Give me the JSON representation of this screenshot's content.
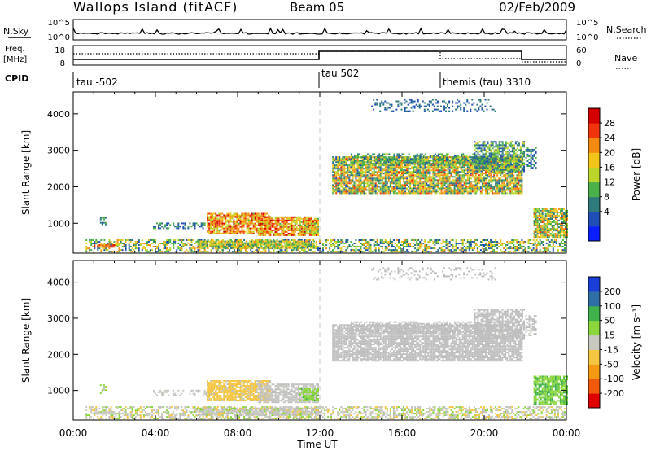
{
  "header": {
    "title": "Wallops Island (fitACF)",
    "beam": "Beam 05",
    "date": "02/Feb/2009"
  },
  "top_panels": {
    "nsky_label": "N.Sky",
    "nsearch_label": "N.Search",
    "noise_ticks": [
      "10^5",
      "10^0"
    ],
    "freq_label_top": "Freq.",
    "freq_label_bottom": "[MHz]",
    "freq_ticks": [
      "18",
      "8"
    ],
    "nave_label": "Nave",
    "nave_ticks": [
      "60",
      "0"
    ],
    "cpid_label": "CPID",
    "cpid_entries": [
      {
        "label": "tau -502",
        "start_hour": 0
      },
      {
        "label": "tau 502",
        "start_hour": 12
      },
      {
        "label": "themis (tau) 3310",
        "start_hour": 18
      }
    ]
  },
  "chart_data": [
    {
      "type": "heatmap",
      "title": "",
      "xlabel": "Time UT",
      "ylabel": "Slant Range [km]",
      "x_range_hours": [
        0,
        24
      ],
      "x_ticks": [
        "00:00",
        "04:00",
        "08:00",
        "12:00",
        "16:00",
        "20:00",
        "00:00"
      ],
      "ylim": [
        180,
        4600
      ],
      "y_ticks": [
        1000,
        2000,
        3000,
        4000
      ],
      "colorbar": {
        "label": "Power [dB]",
        "range": [
          0,
          32
        ],
        "ticks": [
          "28",
          "24",
          "20",
          "16",
          "12",
          "8",
          "4"
        ]
      },
      "colors": [
        "#0a1eff",
        "#1f4fb6",
        "#2f7a7a",
        "#49b04a",
        "#bcd52a",
        "#f2c51a",
        "#f58a12",
        "#f0340c",
        "#d40000"
      ]
    },
    {
      "type": "heatmap",
      "title": "",
      "xlabel": "Time UT",
      "ylabel": "Slant Range [km]",
      "x_range_hours": [
        0,
        24
      ],
      "x_ticks": [
        "00:00",
        "04:00",
        "08:00",
        "12:00",
        "16:00",
        "20:00",
        "00:00"
      ],
      "ylim": [
        180,
        4600
      ],
      "y_ticks": [
        1000,
        2000,
        3000,
        4000
      ],
      "colorbar": {
        "label": "Velocity [m s⁻¹]",
        "range": [
          -250,
          250
        ],
        "ticks": [
          "200",
          "100",
          "50",
          "15",
          "-15",
          "-50",
          "-100",
          "-200"
        ]
      },
      "colors": [
        "#e00000",
        "#f05a0a",
        "#f39a12",
        "#f5c642",
        "#c8c8c0",
        "#8ad63c",
        "#3fb24b",
        "#2f6fa6",
        "#1a3fd6"
      ]
    }
  ],
  "ground_scatter_color": "#bebebe",
  "features": [
    {
      "t0": 0.6,
      "t1": 23.9,
      "r0": 200,
      "r1": 520,
      "density": 0.55,
      "p": [
        4,
        24
      ],
      "v": [
        -60,
        60
      ],
      "gs": 0.15
    },
    {
      "t0": 1.0,
      "t1": 2.0,
      "r0": 330,
      "r1": 420,
      "density": 0.9,
      "p": [
        20,
        30
      ],
      "v": [
        -20,
        20
      ],
      "gs": 0.1
    },
    {
      "t0": 1.3,
      "t1": 1.6,
      "r0": 900,
      "r1": 1150,
      "density": 0.5,
      "p": [
        4,
        12
      ],
      "v": [
        20,
        60
      ],
      "gs": 0.5
    },
    {
      "t0": 3.8,
      "t1": 7.0,
      "r0": 840,
      "r1": 1000,
      "density": 0.4,
      "p": [
        4,
        12
      ],
      "v": [
        -30,
        30
      ],
      "gs": 0.3
    },
    {
      "t0": 6.0,
      "t1": 11.8,
      "r0": 300,
      "r1": 520,
      "density": 0.8,
      "p": [
        8,
        24
      ],
      "v": [
        -50,
        50
      ],
      "gs": 0.5
    },
    {
      "t0": 6.5,
      "t1": 9.6,
      "r0": 700,
      "r1": 1250,
      "density": 0.8,
      "p": [
        14,
        30
      ],
      "v": [
        -80,
        -20
      ],
      "gs": 0.05
    },
    {
      "t0": 9.0,
      "t1": 11.9,
      "r0": 650,
      "r1": 1150,
      "density": 0.8,
      "p": [
        14,
        30
      ],
      "v": [
        -15,
        15
      ],
      "gs": 0.6
    },
    {
      "t0": 11.0,
      "t1": 11.9,
      "r0": 700,
      "r1": 1050,
      "density": 0.7,
      "p": [
        10,
        22
      ],
      "v": [
        40,
        90
      ],
      "gs": 0.0
    },
    {
      "t0": 12.6,
      "t1": 21.8,
      "r0": 1800,
      "r1": 2800,
      "density": 0.85,
      "p": [
        6,
        26
      ],
      "v": [
        -15,
        15
      ],
      "gs": 0.95
    },
    {
      "t0": 13.5,
      "t1": 20.5,
      "r0": 2600,
      "r1": 2900,
      "density": 0.5,
      "p": [
        6,
        16
      ],
      "v": [
        -15,
        15
      ],
      "gs": 0.9
    },
    {
      "t0": 19.5,
      "t1": 21.9,
      "r0": 2400,
      "r1": 3250,
      "density": 0.7,
      "p": [
        4,
        18
      ],
      "v": [
        -15,
        15
      ],
      "gs": 0.9
    },
    {
      "t0": 14.5,
      "t1": 20.5,
      "r0": 4050,
      "r1": 4400,
      "density": 0.25,
      "p": [
        4,
        10
      ],
      "v": [
        -15,
        15
      ],
      "gs": 0.9
    },
    {
      "t0": 22.0,
      "t1": 22.5,
      "r0": 2500,
      "r1": 3050,
      "density": 0.5,
      "p": [
        4,
        14
      ],
      "v": [
        -15,
        15
      ],
      "gs": 0.8
    },
    {
      "t0": 22.4,
      "t1": 24.0,
      "r0": 600,
      "r1": 1400,
      "density": 0.85,
      "p": [
        8,
        26
      ],
      "v": [
        30,
        120
      ],
      "gs": 0.0
    }
  ]
}
